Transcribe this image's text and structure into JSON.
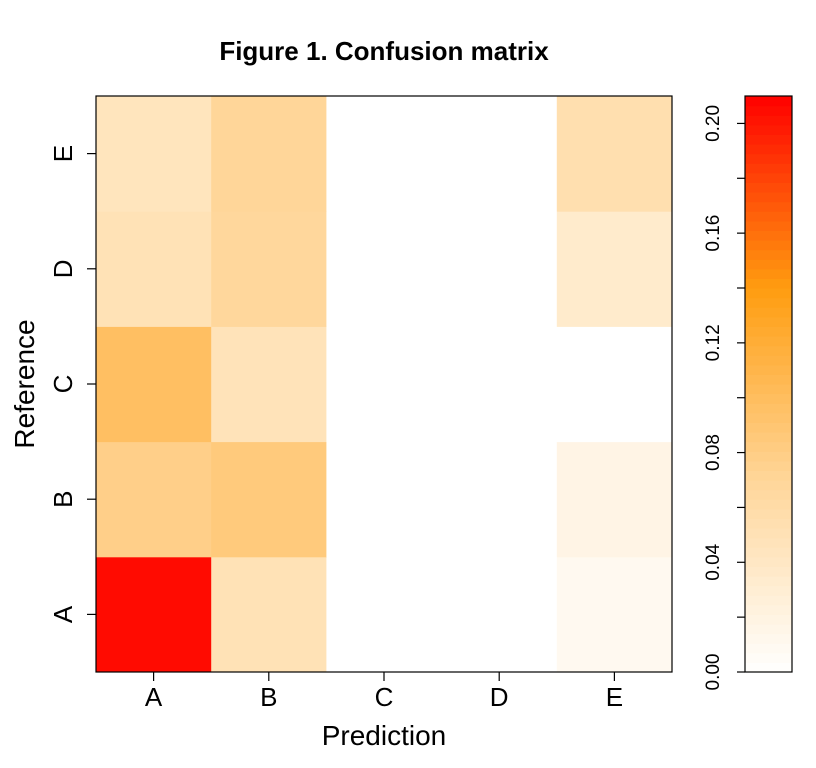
{
  "chart_data": {
    "type": "heatmap",
    "title": "Figure 1. Confusion matrix",
    "xlabel": "Prediction",
    "ylabel": "Reference",
    "x_categories": [
      "A",
      "B",
      "C",
      "D",
      "E"
    ],
    "y_categories": [
      "A",
      "B",
      "C",
      "D",
      "E"
    ],
    "values": [
      [
        0.205,
        0.05,
        0.0,
        0.0,
        0.01
      ],
      [
        0.078,
        0.085,
        0.0,
        0.0,
        0.018
      ],
      [
        0.098,
        0.048,
        0.0,
        0.0,
        0.0
      ],
      [
        0.05,
        0.068,
        0.0,
        0.0,
        0.035
      ],
      [
        0.045,
        0.07,
        0.0,
        0.0,
        0.055
      ]
    ],
    "value_layout": "rows = reference category (A..E), columns = prediction category (A..E)",
    "colorbar": {
      "range": [
        0.0,
        0.21
      ],
      "ticks": [
        0.0,
        0.04,
        0.08,
        0.12,
        0.16,
        0.2
      ],
      "tick_labels": [
        "0.00",
        "0.04",
        "0.08",
        "0.12",
        "0.16",
        "0.20"
      ],
      "colors": [
        "#ffffff",
        "#ffd699",
        "#ff9d10",
        "#ff0000"
      ]
    },
    "grid": false,
    "legend_position": "right"
  }
}
